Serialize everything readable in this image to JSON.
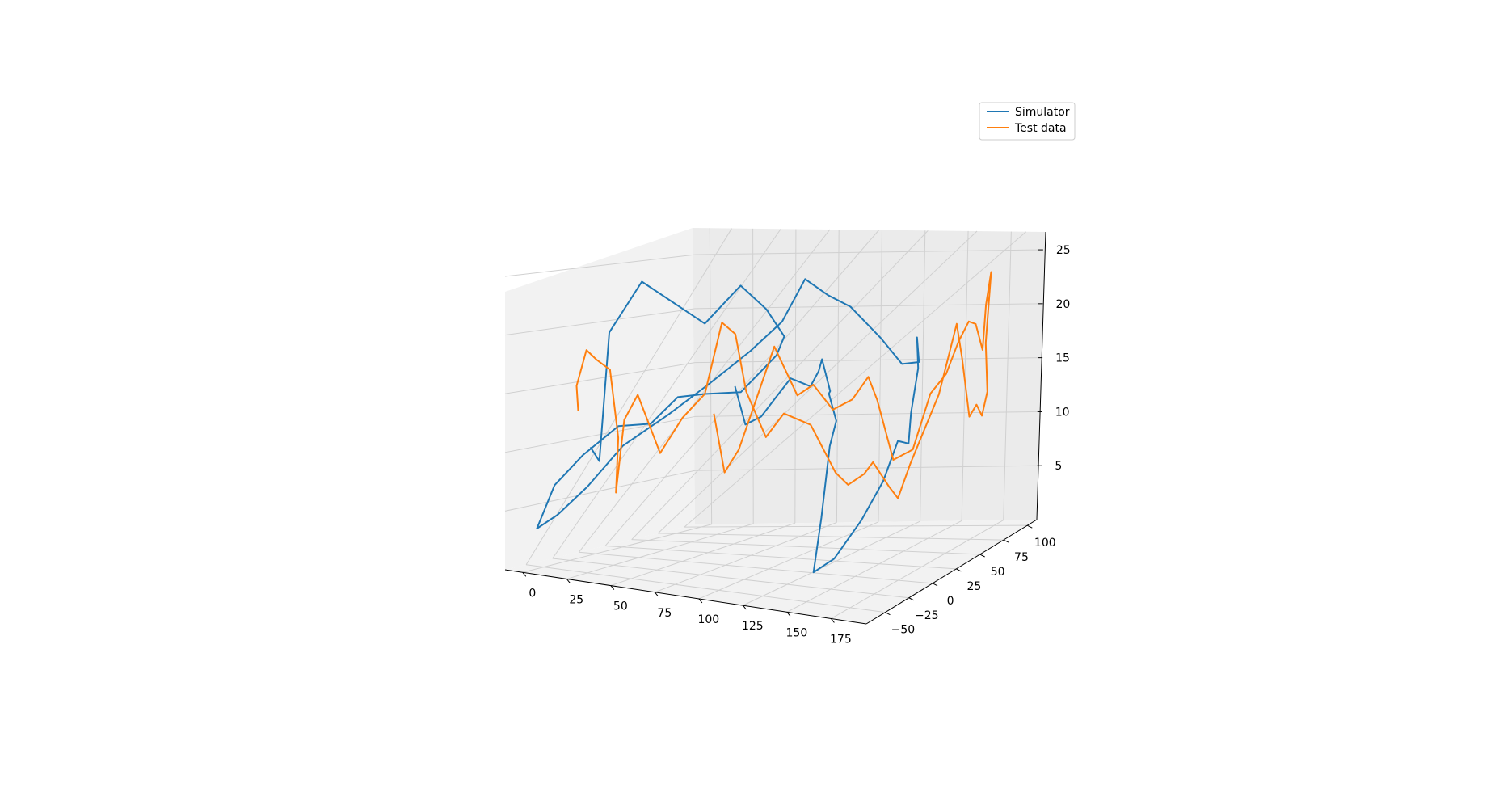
{
  "chart_data": {
    "type": "line",
    "projection": "3d",
    "title": "",
    "xlabel": "",
    "ylabel": "",
    "zlabel": "",
    "xlim": [
      -10,
      195
    ],
    "ylim": [
      -70,
      110
    ],
    "zlim": [
      0,
      27
    ],
    "x_ticks": [
      0,
      25,
      50,
      75,
      100,
      125,
      150,
      175
    ],
    "x_tick_labels": [
      "0",
      "25",
      "50",
      "75",
      "100",
      "125",
      "150",
      "175"
    ],
    "y_ticks": [
      -50,
      -25,
      0,
      25,
      50,
      75,
      100
    ],
    "y_tick_labels": [
      "−50",
      "−25",
      "0",
      "25",
      "50",
      "75",
      "100"
    ],
    "z_ticks": [
      5,
      10,
      15,
      20,
      25
    ],
    "z_tick_labels": [
      "5",
      "10",
      "15",
      "20",
      "25"
    ],
    "grid": true,
    "legend_position": "top-right",
    "series": [
      {
        "name": "Simulator",
        "color": "#1f77b4",
        "points": [
          [
            25,
            -45,
            10
          ],
          [
            22,
            -30,
            8
          ],
          [
            18,
            -12,
            18
          ],
          [
            30,
            0,
            22
          ],
          [
            55,
            20,
            18
          ],
          [
            78,
            15,
            22
          ],
          [
            90,
            20,
            20
          ],
          [
            92,
            35,
            17
          ],
          [
            85,
            40,
            15
          ],
          [
            70,
            30,
            12
          ],
          [
            55,
            20,
            12
          ],
          [
            45,
            10,
            12
          ],
          [
            35,
            0,
            10
          ],
          [
            22,
            -10,
            10
          ],
          [
            10,
            -25,
            8
          ],
          [
            2,
            -40,
            6
          ],
          [
            0,
            -55,
            3
          ],
          [
            8,
            -48,
            4
          ],
          [
            18,
            -35,
            6
          ],
          [
            30,
            -20,
            9
          ],
          [
            45,
            0,
            11
          ],
          [
            58,
            20,
            13
          ],
          [
            70,
            40,
            15
          ],
          [
            80,
            55,
            17
          ],
          [
            85,
            70,
            20
          ],
          [
            90,
            85,
            18
          ],
          [
            100,
            90,
            17
          ],
          [
            120,
            85,
            15
          ],
          [
            140,
            70,
            14
          ],
          [
            155,
            60,
            15
          ],
          [
            162,
            45,
            18
          ],
          [
            168,
            35,
            16
          ],
          [
            172,
            20,
            13
          ],
          [
            176,
            10,
            11
          ],
          [
            178,
            -5,
            12
          ],
          [
            175,
            -15,
            9
          ],
          [
            168,
            -25,
            6
          ],
          [
            158,
            -35,
            3
          ],
          [
            150,
            -42,
            2
          ],
          [
            148,
            -30,
            6
          ],
          [
            142,
            -10,
            11
          ],
          [
            135,
            10,
            12
          ],
          [
            120,
            30,
            13
          ],
          [
            110,
            50,
            12
          ],
          [
            100,
            60,
            14
          ],
          [
            90,
            75,
            12
          ],
          [
            80,
            85,
            10
          ],
          [
            65,
            92,
            10
          ],
          [
            55,
            95,
            8
          ],
          [
            45,
            98,
            6
          ],
          [
            35,
            100,
            5
          ],
          [
            28,
            102,
            8
          ]
        ]
      },
      {
        "name": "Test data",
        "color": "#ff7f0e",
        "points": [
          [
            10,
            -30,
            12
          ],
          [
            8,
            -28,
            14
          ],
          [
            12,
            -25,
            17
          ],
          [
            15,
            -20,
            16
          ],
          [
            20,
            -15,
            15
          ],
          [
            22,
            -10,
            9
          ],
          [
            18,
            -5,
            4
          ],
          [
            20,
            0,
            10
          ],
          [
            25,
            5,
            12
          ],
          [
            35,
            10,
            7
          ],
          [
            45,
            15,
            10
          ],
          [
            55,
            20,
            12
          ],
          [
            62,
            25,
            18
          ],
          [
            68,
            28,
            17
          ],
          [
            72,
            32,
            12
          ],
          [
            80,
            38,
            8
          ],
          [
            88,
            42,
            10
          ],
          [
            100,
            48,
            9
          ],
          [
            112,
            52,
            5
          ],
          [
            118,
            54,
            4
          ],
          [
            126,
            56,
            5
          ],
          [
            130,
            58,
            6
          ],
          [
            138,
            60,
            4
          ],
          [
            142,
            62,
            3
          ],
          [
            148,
            64,
            6
          ],
          [
            155,
            66,
            9
          ],
          [
            162,
            68,
            12
          ],
          [
            166,
            70,
            15
          ],
          [
            170,
            72,
            18
          ],
          [
            172,
            74,
            15
          ],
          [
            175,
            76,
            10
          ],
          [
            178,
            78,
            11
          ],
          [
            180,
            80,
            10
          ],
          [
            182,
            82,
            12
          ],
          [
            180,
            84,
            16
          ],
          [
            182,
            86,
            22
          ],
          [
            178,
            88,
            19
          ],
          [
            175,
            90,
            15
          ],
          [
            170,
            92,
            17
          ],
          [
            165,
            94,
            17
          ],
          [
            158,
            96,
            15
          ],
          [
            150,
            98,
            12
          ],
          [
            140,
            100,
            10
          ],
          [
            130,
            100,
            5
          ],
          [
            120,
            98,
            4
          ],
          [
            112,
            96,
            9
          ],
          [
            108,
            94,
            11
          ],
          [
            100,
            92,
            9
          ],
          [
            90,
            90,
            8
          ],
          [
            80,
            88,
            10
          ],
          [
            72,
            86,
            9
          ],
          [
            60,
            84,
            13
          ],
          [
            50,
            82,
            8
          ],
          [
            42,
            80,
            4
          ],
          [
            35,
            78,
            2
          ],
          [
            30,
            76,
            7
          ]
        ]
      }
    ]
  }
}
